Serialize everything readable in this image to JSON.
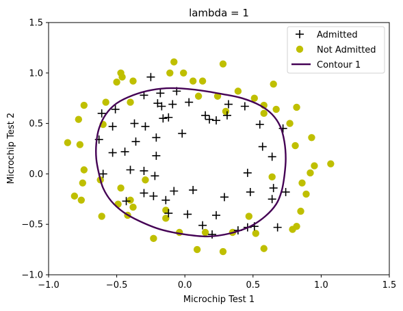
{
  "chart_data": {
    "type": "scatter",
    "title": "lambda = 1",
    "xlabel": "Microchip Test 1",
    "ylabel": "Microchip Test 2",
    "xlim": [
      -1.0,
      1.5
    ],
    "ylim": [
      -1.0,
      1.5
    ],
    "xticks": [
      "−1.0",
      "−0.5",
      "0.0",
      "0.5",
      "1.0",
      "1.5"
    ],
    "yticks": [
      "−1.0",
      "−0.5",
      "0.0",
      "0.5",
      "1.0",
      "1.5"
    ],
    "xtick_values": [
      -1.0,
      -0.5,
      0.0,
      0.5,
      1.0,
      1.5
    ],
    "ytick_values": [
      -1.0,
      -0.5,
      0.0,
      0.5,
      1.0,
      1.5
    ],
    "grid": false,
    "legend_position": "top-right",
    "series": [
      {
        "name": "Admitted",
        "marker": "plus",
        "color": "#000000",
        "points": [
          [
            -0.25,
            0.96
          ],
          [
            -0.3,
            0.78
          ],
          [
            -0.18,
            0.8
          ],
          [
            -0.06,
            0.82
          ],
          [
            -0.2,
            0.7
          ],
          [
            -0.17,
            0.67
          ],
          [
            -0.09,
            0.69
          ],
          [
            -0.51,
            0.64
          ],
          [
            -0.61,
            0.6
          ],
          [
            -0.16,
            0.55
          ],
          [
            -0.12,
            0.56
          ],
          [
            0.03,
            0.71
          ],
          [
            0.15,
            0.58
          ],
          [
            0.18,
            0.54
          ],
          [
            0.23,
            0.53
          ],
          [
            0.31,
            0.58
          ],
          [
            0.32,
            0.69
          ],
          [
            0.44,
            0.67
          ],
          [
            0.55,
            0.49
          ],
          [
            0.72,
            0.45
          ],
          [
            -0.53,
            0.47
          ],
          [
            -0.37,
            0.5
          ],
          [
            -0.29,
            0.47
          ],
          [
            -0.63,
            0.34
          ],
          [
            -0.36,
            0.32
          ],
          [
            -0.21,
            0.36
          ],
          [
            -0.02,
            0.4
          ],
          [
            -0.53,
            0.21
          ],
          [
            -0.44,
            0.22
          ],
          [
            -0.21,
            0.18
          ],
          [
            0.57,
            0.27
          ],
          [
            0.64,
            0.17
          ],
          [
            -0.6,
            0.0
          ],
          [
            -0.4,
            0.04
          ],
          [
            -0.3,
            0.03
          ],
          [
            -0.22,
            -0.02
          ],
          [
            0.46,
            0.01
          ],
          [
            -0.08,
            -0.17
          ],
          [
            0.06,
            -0.16
          ],
          [
            -0.3,
            -0.19
          ],
          [
            -0.23,
            -0.22
          ],
          [
            -0.14,
            -0.26
          ],
          [
            0.48,
            -0.18
          ],
          [
            0.65,
            -0.14
          ],
          [
            0.74,
            -0.18
          ],
          [
            -0.43,
            -0.27
          ],
          [
            0.29,
            -0.23
          ],
          [
            0.64,
            -0.25
          ],
          [
            -0.12,
            -0.39
          ],
          [
            0.02,
            -0.4
          ],
          [
            0.23,
            -0.41
          ],
          [
            0.13,
            -0.51
          ],
          [
            0.2,
            -0.6
          ],
          [
            0.39,
            -0.56
          ],
          [
            0.46,
            -0.53
          ],
          [
            0.51,
            -0.52
          ],
          [
            0.68,
            -0.53
          ]
        ]
      },
      {
        "name": "Not Admitted",
        "marker": "circle",
        "color": "#bfbf00",
        "points": [
          [
            -0.47,
            1.0
          ],
          [
            -0.5,
            0.91
          ],
          [
            -0.38,
            0.92
          ],
          [
            -0.11,
            1.0
          ],
          [
            -0.08,
            1.11
          ],
          [
            -0.01,
            1.0
          ],
          [
            0.06,
            0.92
          ],
          [
            0.28,
            1.09
          ],
          [
            0.13,
            0.92
          ],
          [
            -0.46,
            0.96
          ],
          [
            -0.58,
            0.71
          ],
          [
            -0.4,
            0.71
          ],
          [
            -0.74,
            0.68
          ],
          [
            -0.78,
            0.54
          ],
          [
            -0.6,
            0.49
          ],
          [
            0.1,
            0.77
          ],
          [
            0.24,
            0.77
          ],
          [
            0.39,
            0.82
          ],
          [
            0.51,
            0.75
          ],
          [
            0.58,
            0.68
          ],
          [
            0.65,
            0.89
          ],
          [
            0.67,
            0.64
          ],
          [
            0.58,
            0.6
          ],
          [
            0.82,
            0.66
          ],
          [
            0.77,
            0.5
          ],
          [
            0.3,
            0.62
          ],
          [
            -0.86,
            0.31
          ],
          [
            -0.77,
            0.29
          ],
          [
            -0.74,
            0.04
          ],
          [
            -0.62,
            -0.06
          ],
          [
            -0.75,
            -0.09
          ],
          [
            -0.81,
            -0.22
          ],
          [
            -0.76,
            -0.26
          ],
          [
            0.93,
            0.36
          ],
          [
            0.95,
            0.08
          ],
          [
            1.07,
            0.1
          ],
          [
            0.92,
            0.01
          ],
          [
            0.81,
            0.28
          ],
          [
            0.64,
            -0.03
          ],
          [
            -0.47,
            -0.14
          ],
          [
            -0.29,
            -0.06
          ],
          [
            0.86,
            -0.09
          ],
          [
            0.89,
            -0.2
          ],
          [
            -0.4,
            -0.26
          ],
          [
            -0.49,
            -0.3
          ],
          [
            -0.38,
            -0.33
          ],
          [
            -0.42,
            -0.41
          ],
          [
            -0.61,
            -0.42
          ],
          [
            -0.14,
            -0.36
          ],
          [
            -0.14,
            -0.44
          ],
          [
            0.47,
            -0.42
          ],
          [
            0.85,
            -0.37
          ],
          [
            0.82,
            -0.52
          ],
          [
            0.79,
            -0.55
          ],
          [
            0.52,
            -0.59
          ],
          [
            0.35,
            -0.58
          ],
          [
            0.15,
            -0.58
          ],
          [
            -0.04,
            -0.58
          ],
          [
            -0.23,
            -0.64
          ],
          [
            0.58,
            -0.74
          ],
          [
            0.09,
            -0.75
          ],
          [
            0.28,
            -0.77
          ]
        ]
      },
      {
        "name": "Contour 1",
        "marker": "line",
        "color": "#440154",
        "points": [
          [
            -0.1,
            0.85
          ],
          [
            0.1,
            0.83
          ],
          [
            0.28,
            0.79
          ],
          [
            0.42,
            0.75
          ],
          [
            0.55,
            0.68
          ],
          [
            0.64,
            0.59
          ],
          [
            0.7,
            0.47
          ],
          [
            0.73,
            0.32
          ],
          [
            0.74,
            0.15
          ],
          [
            0.73,
            -0.02
          ],
          [
            0.71,
            -0.17
          ],
          [
            0.67,
            -0.3
          ],
          [
            0.59,
            -0.42
          ],
          [
            0.48,
            -0.52
          ],
          [
            0.33,
            -0.59
          ],
          [
            0.17,
            -0.62
          ],
          [
            0.0,
            -0.6
          ],
          [
            -0.18,
            -0.55
          ],
          [
            -0.33,
            -0.47
          ],
          [
            -0.45,
            -0.38
          ],
          [
            -0.54,
            -0.27
          ],
          [
            -0.6,
            -0.14
          ],
          [
            -0.63,
            0.0
          ],
          [
            -0.65,
            0.15
          ],
          [
            -0.65,
            0.3
          ],
          [
            -0.63,
            0.45
          ],
          [
            -0.58,
            0.59
          ],
          [
            -0.5,
            0.7
          ],
          [
            -0.38,
            0.78
          ],
          [
            -0.25,
            0.83
          ],
          [
            -0.1,
            0.85
          ]
        ]
      }
    ]
  }
}
